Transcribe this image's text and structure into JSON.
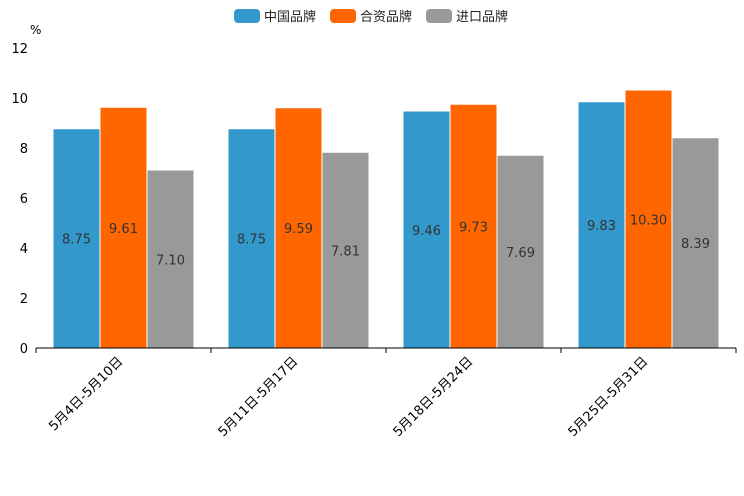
{
  "chart_data": {
    "type": "bar",
    "unit": "%",
    "categories": [
      "5月4日-5月10日",
      "5月11日-5月17日",
      "5月18日-5月24日",
      "5月25日-5月31日"
    ],
    "series": [
      {
        "name": "中国品牌",
        "color": "#3399cc",
        "values": [
          8.75,
          8.75,
          9.46,
          9.83
        ],
        "labels": [
          "8.75",
          "8.75",
          "9.46",
          "9.83"
        ]
      },
      {
        "name": "合资品牌",
        "color": "#ff6600",
        "values": [
          9.61,
          9.59,
          9.73,
          10.3
        ],
        "labels": [
          "9.61",
          "9.59",
          "9.73",
          "10.30"
        ]
      },
      {
        "name": "进口品牌",
        "color": "#999999",
        "values": [
          7.1,
          7.81,
          7.69,
          8.39
        ],
        "labels": [
          "7.10",
          "7.81",
          "7.69",
          "8.39"
        ]
      }
    ],
    "ylim": [
      0,
      12
    ],
    "yticks": [
      0,
      2,
      4,
      6,
      8,
      10,
      12
    ],
    "grid": false,
    "legend": "top-center"
  }
}
